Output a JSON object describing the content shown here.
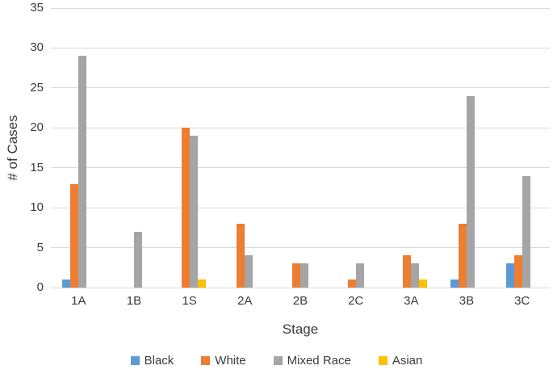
{
  "chart_data": {
    "type": "bar",
    "title": "",
    "xlabel": "Stage",
    "ylabel": "# of Cases",
    "categories": [
      "1A",
      "1B",
      "1S",
      "2A",
      "2B",
      "2C",
      "3A",
      "3B",
      "3C"
    ],
    "series": [
      {
        "name": "Black",
        "color": "#5B9BD5",
        "values": [
          1,
          0,
          0,
          0,
          0,
          0,
          0,
          1,
          3
        ]
      },
      {
        "name": "White",
        "color": "#ED7D31",
        "values": [
          13,
          0,
          20,
          8,
          3,
          1,
          4,
          8,
          4
        ]
      },
      {
        "name": "Mixed Race",
        "color": "#A5A5A5",
        "values": [
          29,
          7,
          19,
          4,
          3,
          3,
          3,
          24,
          14
        ]
      },
      {
        "name": "Asian",
        "color": "#FFC000",
        "values": [
          0,
          0,
          1,
          0,
          0,
          0,
          1,
          0,
          0
        ]
      }
    ],
    "ylim": [
      0,
      35
    ],
    "ytick_step": 5,
    "grid": true,
    "legend_position": "bottom",
    "gridline_color": "#d9d9d9",
    "text_color": "#3a3a3a"
  }
}
